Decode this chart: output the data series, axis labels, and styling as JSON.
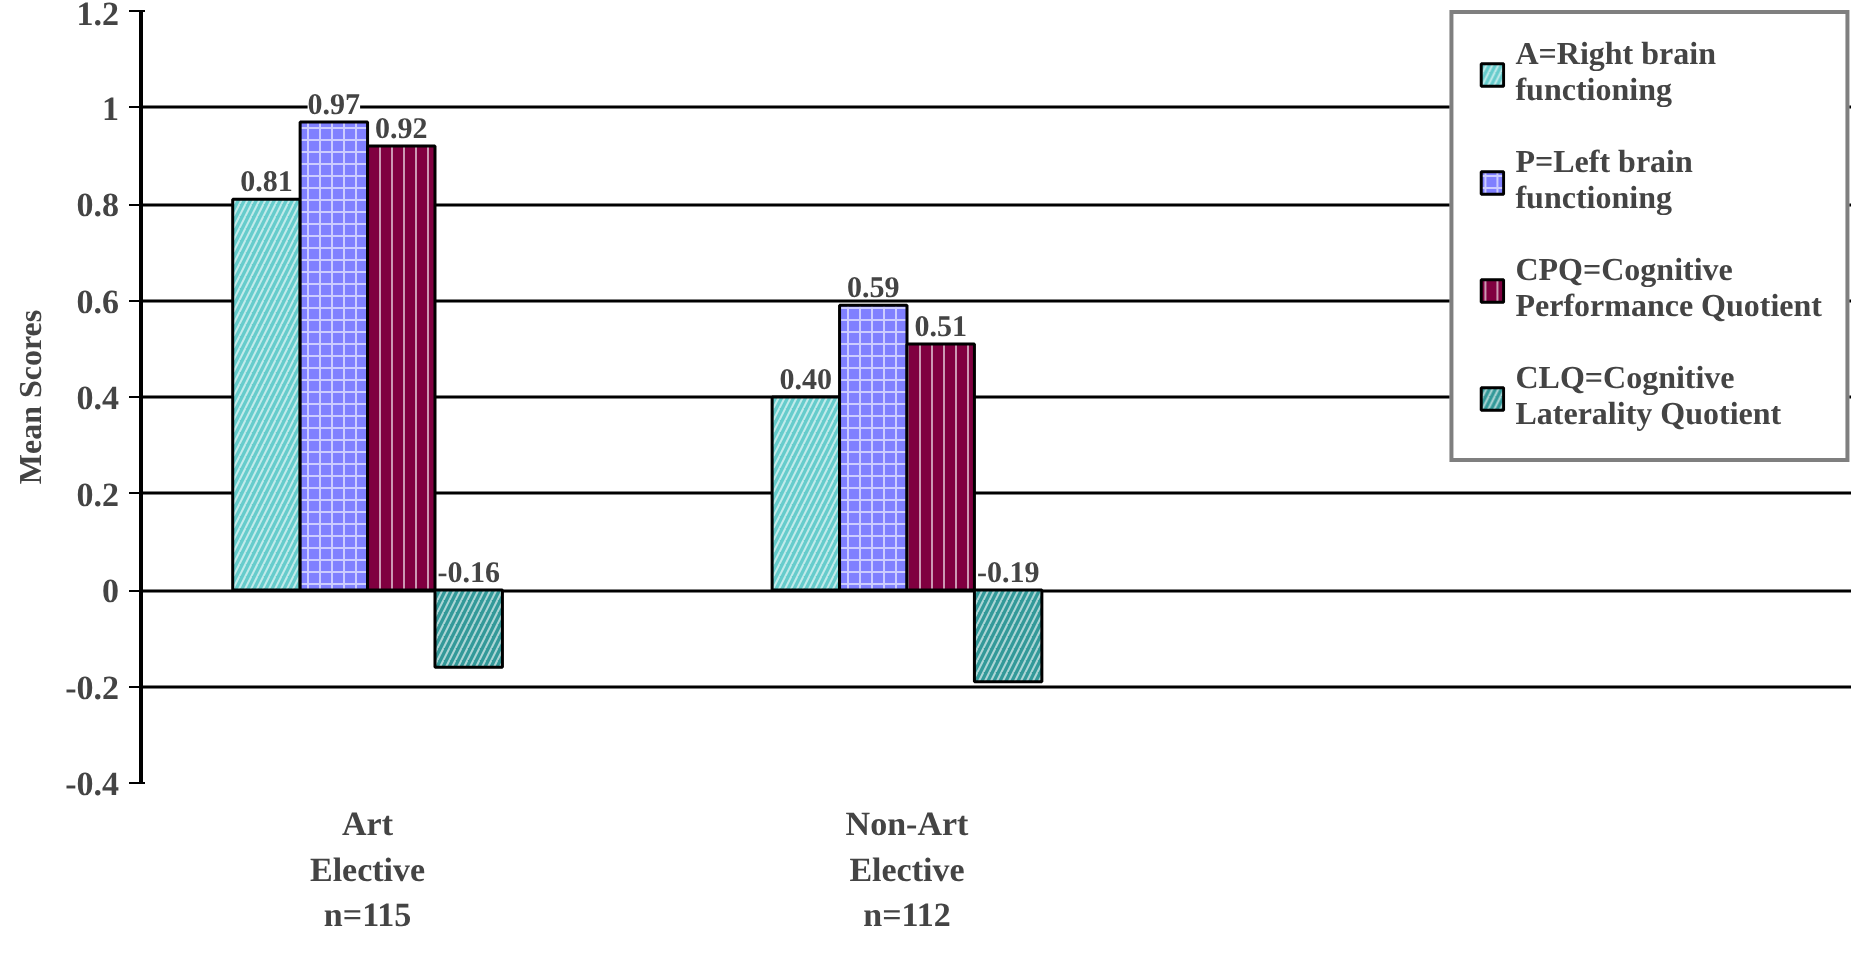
{
  "chart_data": {
    "type": "bar",
    "ylabel": "Mean Scores",
    "categories": [
      "Art\nElective\nn=115",
      "Non-Art\nElective\nn=112"
    ],
    "series": [
      {
        "name": "A=Right brain functioning",
        "color": "#66cccc",
        "values": [
          0.81,
          0.4
        ],
        "value_labels": [
          "0.81",
          "0.40"
        ]
      },
      {
        "name": "P=Left brain functioning",
        "color": "#8080ff",
        "values": [
          0.97,
          0.59
        ],
        "value_labels": [
          "0.97",
          "0.59"
        ]
      },
      {
        "name": "CPQ=Cognitive Performance Quotient",
        "color": "#800040",
        "values": [
          0.92,
          0.51
        ],
        "value_labels": [
          "0.92",
          "0.51"
        ]
      },
      {
        "name": "CLQ=Cognitive Laterality Quotient",
        "color": "#339999",
        "values": [
          -0.16,
          -0.19
        ],
        "value_labels": [
          "-0.16",
          "-0.19"
        ]
      }
    ],
    "ylim": [
      -0.4,
      1.2
    ],
    "yticks": [
      -0.4,
      -0.2,
      0,
      0.2,
      0.4,
      0.6,
      0.8,
      1,
      1.2
    ],
    "grid": "y",
    "legend": "right"
  }
}
